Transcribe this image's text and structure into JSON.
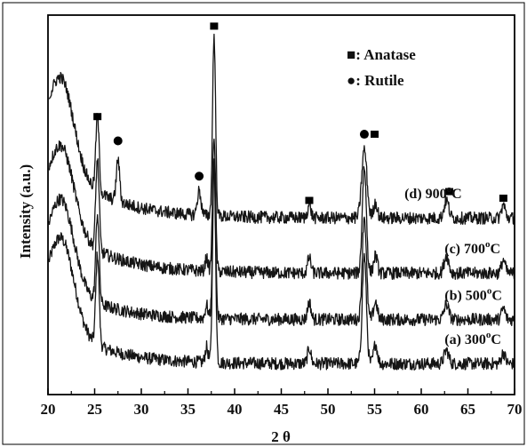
{
  "chart_data": {
    "type": "line",
    "title": "",
    "xlabel": "2 θ",
    "ylabel": "Intensity (a.u.)",
    "xlim": [
      20,
      70
    ],
    "x_ticks": [
      "20",
      "25",
      "30",
      "35",
      "40",
      "45",
      "50",
      "55",
      "60",
      "65",
      "70"
    ],
    "y_tick_labels": "none",
    "grid": false,
    "legend": {
      "placement": "top-right",
      "entries": [
        {
          "marker": "square",
          "label": "■: Anatase"
        },
        {
          "marker": "circle",
          "label": "●: Rutile"
        }
      ]
    },
    "series": [
      {
        "name": "(a) 300°C",
        "label_main": "(a) 300",
        "label_deg": "o",
        "label_unit": "C",
        "label_x": 62.5,
        "baseline": 0.7,
        "peaks": [
          {
            "x": 21.5,
            "h": 1.9,
            "w": 1.3
          },
          {
            "x": 25.3,
            "h": 2.05,
            "w": 0.18
          },
          {
            "x": 37.0,
            "h": 0.35,
            "w": 0.15
          },
          {
            "x": 37.8,
            "h": 4.5,
            "w": 0.16
          },
          {
            "x": 48.0,
            "h": 0.35,
            "w": 0.18
          },
          {
            "x": 53.9,
            "h": 2.45,
            "w": 0.22
          },
          {
            "x": 55.1,
            "h": 0.45,
            "w": 0.2
          },
          {
            "x": 62.7,
            "h": 0.3,
            "w": 0.25
          },
          {
            "x": 68.8,
            "h": 0.25,
            "w": 0.2
          }
        ],
        "decay": {
          "amp": 1.3,
          "rate": 0.22
        }
      },
      {
        "name": "(b) 500°C",
        "label_main": "(b) 500",
        "label_deg": "o",
        "label_unit": "C",
        "label_x": 62.5,
        "baseline": 1.7,
        "peaks": [
          {
            "x": 21.5,
            "h": 1.85,
            "w": 1.3
          },
          {
            "x": 25.3,
            "h": 2.0,
            "w": 0.18
          },
          {
            "x": 37.0,
            "h": 0.3,
            "w": 0.15
          },
          {
            "x": 37.8,
            "h": 3.55,
            "w": 0.16
          },
          {
            "x": 48.0,
            "h": 0.4,
            "w": 0.18
          },
          {
            "x": 53.9,
            "h": 2.35,
            "w": 0.22
          },
          {
            "x": 55.1,
            "h": 0.4,
            "w": 0.2
          },
          {
            "x": 62.7,
            "h": 0.35,
            "w": 0.25
          },
          {
            "x": 68.8,
            "h": 0.25,
            "w": 0.2
          }
        ],
        "decay": {
          "amp": 1.2,
          "rate": 0.22
        }
      },
      {
        "name": "(c) 700°C",
        "label_main": "(c) 700",
        "label_deg": "o",
        "label_unit": "C",
        "label_x": 62.5,
        "baseline": 2.75,
        "peaks": [
          {
            "x": 21.5,
            "h": 1.8,
            "w": 1.3
          },
          {
            "x": 25.3,
            "h": 2.05,
            "w": 0.18
          },
          {
            "x": 37.0,
            "h": 0.3,
            "w": 0.15
          },
          {
            "x": 37.8,
            "h": 3.1,
            "w": 0.16
          },
          {
            "x": 48.0,
            "h": 0.35,
            "w": 0.18
          },
          {
            "x": 53.9,
            "h": 2.4,
            "w": 0.22
          },
          {
            "x": 55.1,
            "h": 0.4,
            "w": 0.2
          },
          {
            "x": 62.7,
            "h": 0.4,
            "w": 0.25
          },
          {
            "x": 68.8,
            "h": 0.3,
            "w": 0.2
          }
        ],
        "decay": {
          "amp": 1.45,
          "rate": 0.2
        }
      },
      {
        "name": "(d) 900°C",
        "label_main": "(d) 900",
        "label_deg": "o",
        "label_unit": "C",
        "label_x": 58.2,
        "baseline": 4.0,
        "peaks": [
          {
            "x": 21.5,
            "h": 1.9,
            "w": 1.3
          },
          {
            "x": 25.3,
            "h": 1.7,
            "w": 0.18
          },
          {
            "x": 27.5,
            "h": 0.95,
            "w": 0.18
          },
          {
            "x": 36.2,
            "h": 0.55,
            "w": 0.2
          },
          {
            "x": 37.8,
            "h": 4.1,
            "w": 0.16
          },
          {
            "x": 48.0,
            "h": 0.3,
            "w": 0.18
          },
          {
            "x": 53.9,
            "h": 1.55,
            "w": 0.28
          },
          {
            "x": 55.1,
            "h": 0.35,
            "w": 0.2
          },
          {
            "x": 62.7,
            "h": 0.4,
            "w": 0.25
          },
          {
            "x": 68.8,
            "h": 0.3,
            "w": 0.2
          }
        ],
        "decay": {
          "amp": 1.7,
          "rate": 0.2
        }
      }
    ],
    "peak_markers": [
      {
        "type": "square",
        "x": 25.3,
        "y": 6.3
      },
      {
        "type": "circle",
        "x": 27.5,
        "y": 5.75
      },
      {
        "type": "circle",
        "x": 36.2,
        "y": 4.95
      },
      {
        "type": "square",
        "x": 37.8,
        "y": 8.35
      },
      {
        "type": "square",
        "x": 48.0,
        "y": 4.4
      },
      {
        "type": "circle",
        "x": 53.9,
        "y": 5.9
      },
      {
        "type": "square",
        "x": 55.0,
        "y": 5.9
      },
      {
        "type": "square",
        "x": 63.0,
        "y": 4.6
      },
      {
        "type": "square",
        "x": 68.8,
        "y": 4.45
      }
    ],
    "ylim": [
      0,
      8.6
    ],
    "colors": {
      "line": "#151515",
      "axis": "#000000"
    }
  }
}
